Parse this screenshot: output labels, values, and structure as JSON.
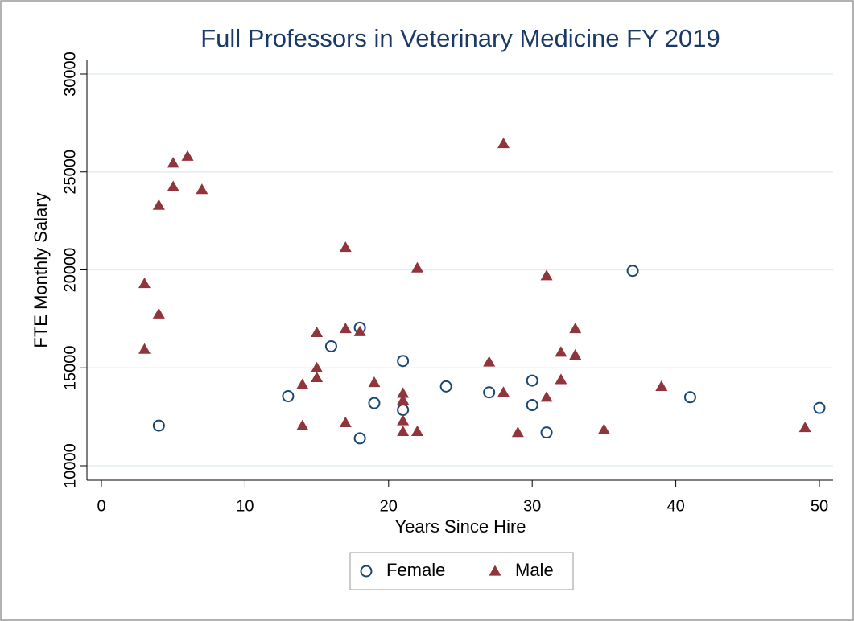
{
  "chart_data": {
    "type": "scatter",
    "title": "Full Professors in Veterinary Medicine FY 2019",
    "x_label": "Years Since Hire",
    "y_label": "FTE Monthly Salary",
    "xlim": [
      0,
      50
    ],
    "xticks": [
      0,
      10,
      20,
      30,
      40,
      50
    ],
    "ylim": [
      10000,
      30000
    ],
    "yticks": [
      10000,
      15000,
      20000,
      25000,
      30000
    ],
    "grid": true,
    "legend": "bottom",
    "series": [
      {
        "name": "Female",
        "color": "#1a476f",
        "marker": "circle",
        "x": [
          4,
          13,
          16,
          18,
          18,
          19,
          21,
          21,
          24,
          27,
          30,
          30,
          31,
          37,
          41,
          50
        ],
        "values": [
          12050,
          13550,
          16100,
          17050,
          11400,
          13200,
          15350,
          12850,
          14050,
          13750,
          14350,
          13100,
          11700,
          19950,
          13500,
          12950
        ]
      },
      {
        "name": "Male",
        "color": "#90353b",
        "marker": "triangle",
        "x": [
          3,
          3,
          4,
          4,
          5,
          5,
          6,
          7,
          14,
          14,
          15,
          15,
          15,
          17,
          17,
          17,
          18,
          19,
          21,
          21,
          21,
          21,
          22,
          22,
          27,
          28,
          28,
          29,
          31,
          31,
          32,
          32,
          33,
          33,
          35,
          39,
          49
        ],
        "values": [
          19300,
          15950,
          23300,
          17750,
          25450,
          24250,
          25800,
          24100,
          14150,
          12050,
          16800,
          15000,
          14500,
          21150,
          17000,
          12200,
          16850,
          14250,
          13700,
          13350,
          12300,
          11750,
          20100,
          11750,
          15300,
          26450,
          13750,
          11700,
          19700,
          13500,
          15800,
          14400,
          17000,
          15650,
          11850,
          14050,
          11950
        ]
      }
    ]
  }
}
